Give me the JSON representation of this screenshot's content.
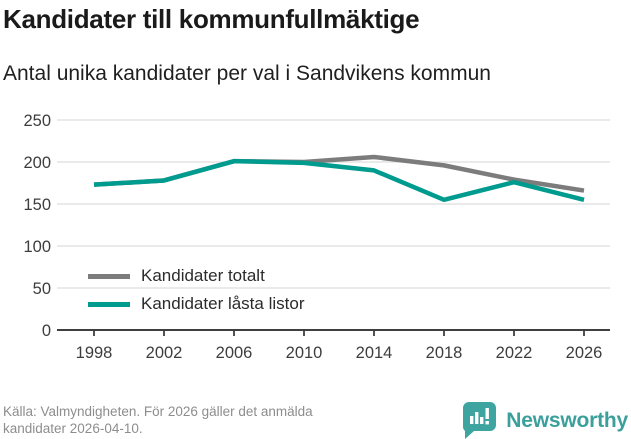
{
  "header": {
    "title": "Kandidater till kommunfullmäktige",
    "subtitle": "Antal unika kandidater per val i Sandvikens kommun"
  },
  "chart_data": {
    "type": "line",
    "categories": [
      "1998",
      "2002",
      "2006",
      "2010",
      "2014",
      "2018",
      "2022",
      "2026"
    ],
    "series": [
      {
        "name": "Kandidater totalt",
        "color": "#7c7c7c",
        "values": [
          173,
          178,
          201,
          200,
          206,
          196,
          179,
          166
        ]
      },
      {
        "name": "Kandidater låsta listor",
        "color": "#009b8f",
        "values": [
          173,
          178,
          201,
          199,
          190,
          155,
          176,
          155
        ]
      }
    ],
    "ylim": [
      0,
      250
    ],
    "yticks": [
      0,
      50,
      100,
      150,
      200,
      250
    ],
    "grid": true,
    "legend_position": "inside-bottom-left"
  },
  "footer": {
    "source_line1": "Källa: Valmyndigheten. För 2026 gäller det anmälda",
    "source_line2": "kandidater 2026-04-10.",
    "brand": "Newsworthy"
  },
  "colors": {
    "axis": "#3f3f3f",
    "gridline": "#e3e3e3",
    "tick_label": "#3d3d3d",
    "title": "#1a1a1a",
    "footer_text": "#8d8d8d",
    "brand_teal": "#3ea4a0",
    "background": "#ffffff"
  }
}
